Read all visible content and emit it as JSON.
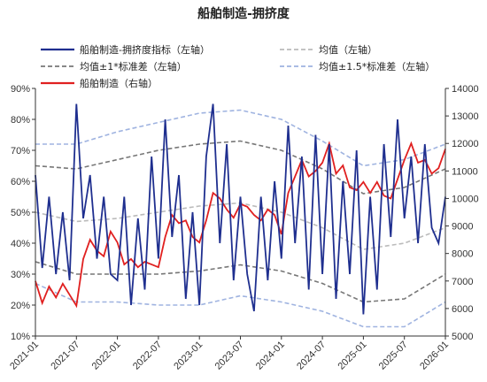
{
  "chart_data": {
    "type": "line",
    "title": "船舶制造-拥挤度",
    "xlabel": "",
    "ylabel_left": "",
    "ylabel_right": "",
    "x_ticks": [
      "2021-01",
      "2021-07",
      "2022-01",
      "2022-07",
      "2023-01",
      "2023-07",
      "2024-01",
      "2024-07",
      "2025-01",
      "2025-07",
      "2026-01"
    ],
    "x_range": [
      "2021-01",
      "2026-01"
    ],
    "ylim_left": [
      0.1,
      0.9
    ],
    "ylim_right": [
      5000,
      14000
    ],
    "y_ticks_left": [
      "10%",
      "20%",
      "30%",
      "40%",
      "50%",
      "60%",
      "70%",
      "80%",
      "90%"
    ],
    "y_ticks_right": [
      "5000",
      "6000",
      "7000",
      "8000",
      "9000",
      "10000",
      "11000",
      "12000",
      "13000",
      "14000"
    ],
    "legend_position": "top",
    "colors": {
      "crowding": "#1f2f8f",
      "mean": "#bbbbbb",
      "band1": "#777777",
      "band15": "#9fb3e0",
      "price": "#e02020"
    },
    "series": [
      {
        "name": "船舶制造-拥挤度指标（左轴）",
        "axis": "left",
        "points": [
          [
            "2021-01",
            0.62
          ],
          [
            "2021-02",
            0.32
          ],
          [
            "2021-03",
            0.55
          ],
          [
            "2021-04",
            0.3
          ],
          [
            "2021-05",
            0.5
          ],
          [
            "2021-06",
            0.28
          ],
          [
            "2021-07",
            0.85
          ],
          [
            "2021-08",
            0.48
          ],
          [
            "2021-09",
            0.62
          ],
          [
            "2021-10",
            0.35
          ],
          [
            "2021-11",
            0.55
          ],
          [
            "2021-12",
            0.3
          ],
          [
            "2022-01",
            0.28
          ],
          [
            "2022-02",
            0.55
          ],
          [
            "2022-03",
            0.2
          ],
          [
            "2022-04",
            0.48
          ],
          [
            "2022-05",
            0.25
          ],
          [
            "2022-06",
            0.68
          ],
          [
            "2022-07",
            0.35
          ],
          [
            "2022-08",
            0.8
          ],
          [
            "2022-09",
            0.42
          ],
          [
            "2022-10",
            0.62
          ],
          [
            "2022-11",
            0.22
          ],
          [
            "2022-12",
            0.5
          ],
          [
            "2023-01",
            0.2
          ],
          [
            "2023-02",
            0.68
          ],
          [
            "2023-03",
            0.85
          ],
          [
            "2023-04",
            0.4
          ],
          [
            "2023-05",
            0.72
          ],
          [
            "2023-06",
            0.28
          ],
          [
            "2023-07",
            0.55
          ],
          [
            "2023-08",
            0.3
          ],
          [
            "2023-09",
            0.18
          ],
          [
            "2023-10",
            0.55
          ],
          [
            "2023-11",
            0.28
          ],
          [
            "2023-12",
            0.6
          ],
          [
            "2024-01",
            0.35
          ],
          [
            "2024-02",
            0.78
          ],
          [
            "2024-03",
            0.4
          ],
          [
            "2024-04",
            0.68
          ],
          [
            "2024-05",
            0.25
          ],
          [
            "2024-06",
            0.75
          ],
          [
            "2024-07",
            0.3
          ],
          [
            "2024-08",
            0.72
          ],
          [
            "2024-09",
            0.22
          ],
          [
            "2024-10",
            0.6
          ],
          [
            "2024-11",
            0.3
          ],
          [
            "2024-12",
            0.7
          ],
          [
            "2025-01",
            0.17
          ],
          [
            "2025-02",
            0.55
          ],
          [
            "2025-03",
            0.25
          ],
          [
            "2025-04",
            0.72
          ],
          [
            "2025-05",
            0.42
          ],
          [
            "2025-06",
            0.8
          ],
          [
            "2025-07",
            0.48
          ],
          [
            "2025-08",
            0.68
          ],
          [
            "2025-09",
            0.4
          ],
          [
            "2025-10",
            0.72
          ],
          [
            "2025-11",
            0.45
          ],
          [
            "2025-12",
            0.4
          ],
          [
            "2026-01",
            0.55
          ]
        ]
      },
      {
        "name": "均值（左轴）",
        "axis": "left",
        "points": [
          [
            "2021-01",
            0.5
          ],
          [
            "2021-07",
            0.47
          ],
          [
            "2022-01",
            0.48
          ],
          [
            "2022-07",
            0.5
          ],
          [
            "2023-01",
            0.52
          ],
          [
            "2023-07",
            0.53
          ],
          [
            "2024-01",
            0.5
          ],
          [
            "2024-07",
            0.45
          ],
          [
            "2025-01",
            0.38
          ],
          [
            "2025-07",
            0.4
          ],
          [
            "2026-01",
            0.45
          ]
        ]
      },
      {
        "name": "均值±1*标准差（左轴）",
        "axis": "left",
        "points_upper": [
          [
            "2021-01",
            0.65
          ],
          [
            "2021-07",
            0.64
          ],
          [
            "2022-01",
            0.67
          ],
          [
            "2022-07",
            0.7
          ],
          [
            "2023-01",
            0.72
          ],
          [
            "2023-07",
            0.73
          ],
          [
            "2024-01",
            0.7
          ],
          [
            "2024-07",
            0.64
          ],
          [
            "2025-01",
            0.56
          ],
          [
            "2025-07",
            0.58
          ],
          [
            "2026-01",
            0.64
          ]
        ],
        "points_lower": [
          [
            "2021-01",
            0.34
          ],
          [
            "2021-07",
            0.3
          ],
          [
            "2022-01",
            0.3
          ],
          [
            "2022-07",
            0.3
          ],
          [
            "2023-01",
            0.31
          ],
          [
            "2023-07",
            0.33
          ],
          [
            "2024-01",
            0.31
          ],
          [
            "2024-07",
            0.27
          ],
          [
            "2025-01",
            0.21
          ],
          [
            "2025-07",
            0.22
          ],
          [
            "2026-01",
            0.3
          ]
        ]
      },
      {
        "name": "均值±1.5*标准差（左轴）",
        "axis": "left",
        "points_upper": [
          [
            "2021-01",
            0.72
          ],
          [
            "2021-07",
            0.72
          ],
          [
            "2022-01",
            0.76
          ],
          [
            "2022-07",
            0.79
          ],
          [
            "2023-01",
            0.82
          ],
          [
            "2023-07",
            0.83
          ],
          [
            "2024-01",
            0.8
          ],
          [
            "2024-07",
            0.73
          ],
          [
            "2025-01",
            0.65
          ],
          [
            "2025-07",
            0.67
          ],
          [
            "2026-01",
            0.72
          ]
        ],
        "points_lower": [
          [
            "2021-01",
            0.27
          ],
          [
            "2021-07",
            0.21
          ],
          [
            "2022-01",
            0.21
          ],
          [
            "2022-07",
            0.2
          ],
          [
            "2023-01",
            0.2
          ],
          [
            "2023-07",
            0.23
          ],
          [
            "2024-01",
            0.21
          ],
          [
            "2024-07",
            0.18
          ],
          [
            "2025-01",
            0.13
          ],
          [
            "2025-07",
            0.13
          ],
          [
            "2026-01",
            0.21
          ]
        ]
      },
      {
        "name": "船舶制造（右轴）",
        "axis": "right",
        "points": [
          [
            "2021-01",
            7000
          ],
          [
            "2021-02",
            6200
          ],
          [
            "2021-03",
            6800
          ],
          [
            "2021-04",
            6400
          ],
          [
            "2021-05",
            6900
          ],
          [
            "2021-06",
            6500
          ],
          [
            "2021-07",
            6100
          ],
          [
            "2021-08",
            7800
          ],
          [
            "2021-09",
            8500
          ],
          [
            "2021-10",
            8100
          ],
          [
            "2021-11",
            7900
          ],
          [
            "2021-12",
            8800
          ],
          [
            "2022-01",
            8400
          ],
          [
            "2022-02",
            7600
          ],
          [
            "2022-03",
            7800
          ],
          [
            "2022-04",
            7500
          ],
          [
            "2022-05",
            7700
          ],
          [
            "2022-06",
            7600
          ],
          [
            "2022-07",
            7500
          ],
          [
            "2022-08",
            8600
          ],
          [
            "2022-09",
            9400
          ],
          [
            "2022-10",
            9100
          ],
          [
            "2022-11",
            9200
          ],
          [
            "2022-12",
            8600
          ],
          [
            "2023-01",
            8400
          ],
          [
            "2023-02",
            9200
          ],
          [
            "2023-03",
            10200
          ],
          [
            "2023-04",
            10000
          ],
          [
            "2023-05",
            9600
          ],
          [
            "2023-06",
            9300
          ],
          [
            "2023-07",
            9800
          ],
          [
            "2023-08",
            9700
          ],
          [
            "2023-09",
            9400
          ],
          [
            "2023-10",
            9200
          ],
          [
            "2023-11",
            9600
          ],
          [
            "2023-12",
            9400
          ],
          [
            "2024-01",
            8700
          ],
          [
            "2024-02",
            10200
          ],
          [
            "2024-03",
            10800
          ],
          [
            "2024-04",
            11400
          ],
          [
            "2024-05",
            10800
          ],
          [
            "2024-06",
            11000
          ],
          [
            "2024-07",
            11300
          ],
          [
            "2024-08",
            12000
          ],
          [
            "2024-09",
            10900
          ],
          [
            "2024-10",
            11200
          ],
          [
            "2024-11",
            10400
          ],
          [
            "2024-12",
            10300
          ],
          [
            "2025-01",
            10600
          ],
          [
            "2025-02",
            10200
          ],
          [
            "2025-03",
            10600
          ],
          [
            "2025-04",
            10100
          ],
          [
            "2025-05",
            10000
          ],
          [
            "2025-06",
            10700
          ],
          [
            "2025-07",
            11400
          ],
          [
            "2025-08",
            12000
          ],
          [
            "2025-09",
            11300
          ],
          [
            "2025-10",
            11400
          ],
          [
            "2025-11",
            10900
          ],
          [
            "2025-12",
            11100
          ],
          [
            "2026-01",
            11800
          ]
        ]
      }
    ]
  },
  "legend": {
    "items": [
      {
        "label": "船舶制造-拥挤度指标（左轴）",
        "style": "solid",
        "color": "#1f2f8f"
      },
      {
        "label": "均值（左轴）",
        "style": "dashed",
        "color": "#bbbbbb"
      },
      {
        "label": "均值±1*标准差（左轴）",
        "style": "dashed",
        "color": "#777777"
      },
      {
        "label": "均值±1.5*标准差（左轴）",
        "style": "dashed",
        "color": "#9fb3e0"
      },
      {
        "label": "船舶制造（右轴）",
        "style": "solid",
        "color": "#e02020"
      }
    ]
  }
}
